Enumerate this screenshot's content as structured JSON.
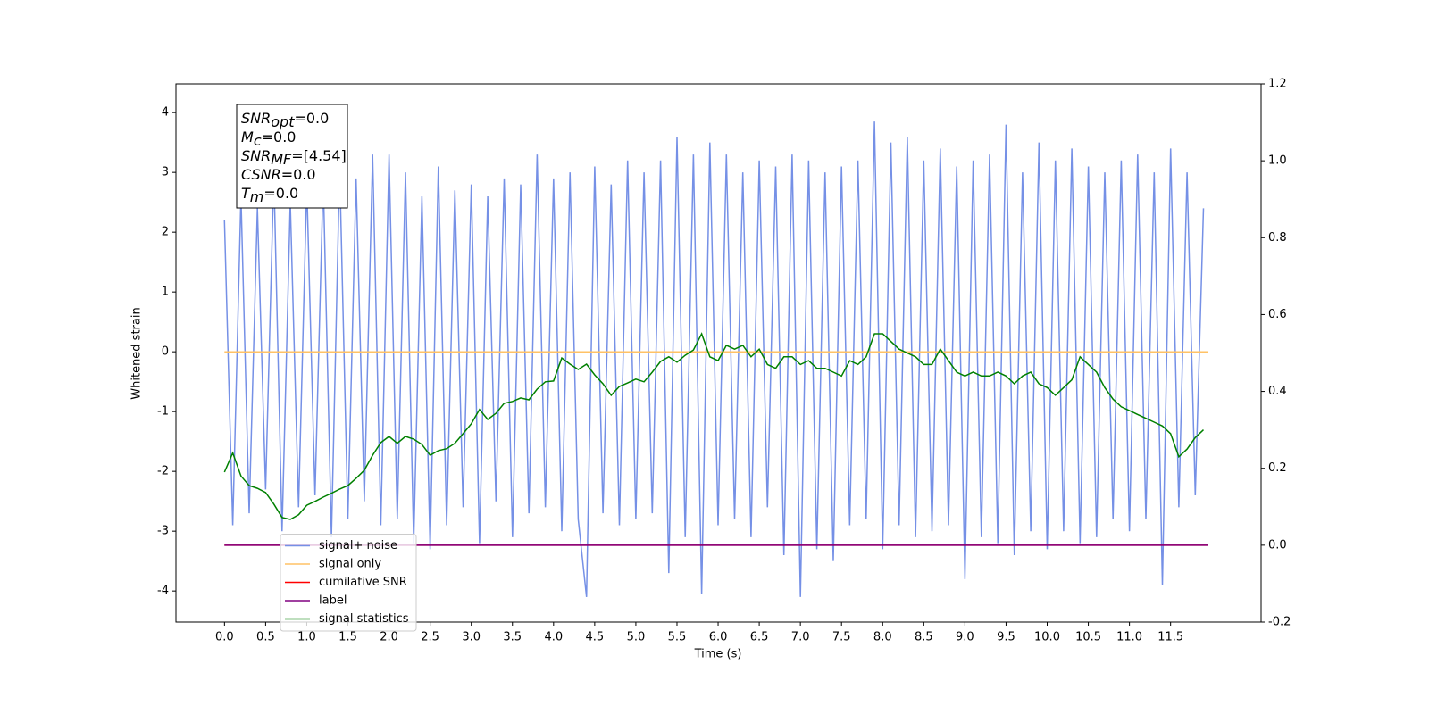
{
  "chart_data": {
    "type": "line",
    "x_label": "Time (s)",
    "y_label": "Whitened strain",
    "x": [
      0,
      0.1,
      0.2,
      0.3,
      0.4,
      0.5,
      0.6,
      0.7,
      0.8,
      0.9,
      1,
      1.1,
      1.2,
      1.3,
      1.4,
      1.5,
      1.6,
      1.7,
      1.8,
      1.9,
      2,
      2.1,
      2.2,
      2.3,
      2.4,
      2.5,
      2.6,
      2.7,
      2.8,
      2.9,
      3,
      3.1,
      3.2,
      3.3,
      3.4,
      3.5,
      3.6,
      3.7,
      3.8,
      3.9,
      4,
      4.1,
      4.2,
      4.3,
      4.4,
      4.5,
      4.6,
      4.7,
      4.8,
      4.9,
      5,
      5.1,
      5.2,
      5.3,
      5.4,
      5.5,
      5.6,
      5.7,
      5.8,
      5.9,
      6,
      6.1,
      6.2,
      6.3,
      6.4,
      6.5,
      6.6,
      6.7,
      6.8,
      6.9,
      7,
      7.1,
      7.2,
      7.3,
      7.4,
      7.5,
      7.6,
      7.7,
      7.8,
      7.9,
      8,
      8.1,
      8.2,
      8.3,
      8.4,
      8.5,
      8.6,
      8.7,
      8.8,
      8.9,
      9,
      9.1,
      9.2,
      9.3,
      9.4,
      9.5,
      9.6,
      9.7,
      9.8,
      9.9,
      10,
      10.1,
      10.2,
      10.3,
      10.4,
      10.5,
      10.6,
      10.7,
      10.8,
      10.9,
      11,
      11.1,
      11.2,
      11.3,
      11.4,
      11.5,
      11.6,
      11.7,
      11.8,
      11.9
    ],
    "series": [
      {
        "name": "signal+ noise",
        "color": "#7590e6",
        "values": [
          2.2,
          -2.9,
          2.6,
          -2.7,
          2.4,
          -2.3,
          3.0,
          -3.0,
          2.5,
          -2.6,
          2.8,
          -2.4,
          2.9,
          -3.1,
          3.1,
          -2.8,
          2.9,
          -2.5,
          3.3,
          -2.9,
          3.3,
          -2.8,
          3.0,
          -3.2,
          2.6,
          -3.3,
          3.1,
          -2.9,
          2.7,
          -2.6,
          2.8,
          -3.2,
          2.6,
          -2.5,
          2.9,
          -3.1,
          2.8,
          -2.7,
          3.3,
          -2.6,
          2.9,
          -3.0,
          3.0,
          -2.8,
          -4.1,
          3.1,
          -2.7,
          2.8,
          -2.9,
          3.2,
          -2.8,
          3.0,
          -2.7,
          3.2,
          -3.7,
          3.6,
          -3.1,
          3.3,
          -4.05,
          3.5,
          -2.9,
          3.3,
          -2.8,
          3.0,
          -3.1,
          3.2,
          -2.6,
          3.1,
          -3.4,
          3.3,
          -4.1,
          3.2,
          -3.3,
          3.0,
          -3.5,
          3.1,
          -2.9,
          3.2,
          -2.8,
          3.85,
          -3.3,
          3.5,
          -2.9,
          3.6,
          -3.1,
          3.2,
          -3.0,
          3.4,
          -2.9,
          3.1,
          -3.8,
          3.2,
          -3.1,
          3.3,
          -3.2,
          3.8,
          -3.4,
          3.0,
          -3.0,
          3.5,
          -3.3,
          3.2,
          -3.0,
          3.4,
          -3.2,
          3.1,
          -3.1,
          3.0,
          -2.8,
          3.2,
          -3.0,
          3.3,
          -2.8,
          3.0,
          -3.9,
          3.4,
          -2.6,
          3.0,
          -2.4,
          2.4
        ]
      },
      {
        "name": "signal only",
        "color": "#ffc266",
        "x": [
          0,
          11.95
        ],
        "values": [
          0,
          0
        ]
      },
      {
        "name": "cumilative SNR",
        "color": "#ff0000",
        "axis": "y2",
        "x": [
          0,
          11.95
        ],
        "values": [
          0,
          0
        ]
      },
      {
        "name": "label",
        "color": "#800080",
        "axis": "y2",
        "x": [
          0,
          11.95
        ],
        "values": [
          0,
          0
        ]
      },
      {
        "name": "signal statistics",
        "color": "#008000",
        "axis": "y2",
        "values": [
          0.19,
          0.24,
          0.18,
          0.155,
          0.148,
          0.137,
          0.107,
          0.072,
          0.067,
          0.079,
          0.104,
          0.114,
          0.125,
          0.135,
          0.146,
          0.155,
          0.174,
          0.195,
          0.234,
          0.267,
          0.283,
          0.265,
          0.283,
          0.276,
          0.262,
          0.234,
          0.246,
          0.251,
          0.265,
          0.29,
          0.316,
          0.353,
          0.327,
          0.343,
          0.369,
          0.374,
          0.383,
          0.378,
          0.406,
          0.425,
          0.427,
          0.487,
          0.471,
          0.457,
          0.471,
          0.443,
          0.42,
          0.39,
          0.413,
          0.422,
          0.432,
          0.425,
          0.45,
          0.478,
          0.49,
          0.476,
          0.494,
          0.508,
          0.55,
          0.49,
          0.48,
          0.52,
          0.51,
          0.52,
          0.49,
          0.51,
          0.47,
          0.46,
          0.49,
          0.49,
          0.47,
          0.48,
          0.46,
          0.46,
          0.45,
          0.44,
          0.48,
          0.47,
          0.49,
          0.55,
          0.55,
          0.53,
          0.51,
          0.5,
          0.49,
          0.47,
          0.47,
          0.51,
          0.48,
          0.45,
          0.44,
          0.45,
          0.44,
          0.44,
          0.45,
          0.44,
          0.42,
          0.44,
          0.45,
          0.42,
          0.41,
          0.39,
          0.41,
          0.43,
          0.49,
          0.47,
          0.45,
          0.41,
          0.38,
          0.36,
          0.35,
          0.34,
          0.33,
          0.32,
          0.31,
          0.29,
          0.23,
          0.25,
          0.28,
          0.3
        ]
      }
    ],
    "xlim": [
      -0.59,
      12.6
    ],
    "xticks": [
      {
        "value": 0,
        "label": "0.0"
      },
      0.5,
      {
        "value": 1,
        "label": "1.0"
      },
      1.5,
      {
        "value": 2,
        "label": "2.0"
      },
      2.5,
      {
        "value": 3,
        "label": "3.0"
      },
      3.5,
      {
        "value": 4,
        "label": "4.0"
      },
      4.5,
      {
        "value": 5,
        "label": "5.0"
      },
      5.5,
      {
        "value": 6,
        "label": "6.0"
      },
      6.5,
      {
        "value": 7,
        "label": "7.0"
      },
      7.5,
      {
        "value": 8,
        "label": "8.0"
      },
      8.5,
      {
        "value": 9,
        "label": "9.0"
      },
      9.5,
      {
        "value": 10,
        "label": "10.0"
      },
      10.5,
      {
        "value": 11,
        "label": "11.0"
      },
      11.5
    ],
    "ylim": [
      -4.52,
      4.48
    ],
    "yticks": [
      -4,
      -3,
      -2,
      -1,
      0,
      1,
      2,
      3,
      4
    ],
    "y2lim": [
      -0.2,
      1.2
    ],
    "y2ticks": [
      -0.2,
      {
        "value": 0,
        "label": "0.0"
      },
      0.2,
      0.4,
      0.6,
      0.8,
      {
        "value": 1,
        "label": "1.0"
      },
      1.2
    ],
    "legend": "lower left",
    "annotations": [
      {
        "main": "SNR",
        "sub": "opt",
        "text": "=0.0"
      },
      {
        "main": "M",
        "sub": "c",
        "text": "=0.0"
      },
      {
        "main": "SNR",
        "sub": "MF",
        "text": "=[4.54]"
      },
      {
        "main": "CSNR",
        "text": "=0.0"
      },
      {
        "main": "T",
        "sub": "m",
        "text": "=0.0"
      }
    ]
  }
}
